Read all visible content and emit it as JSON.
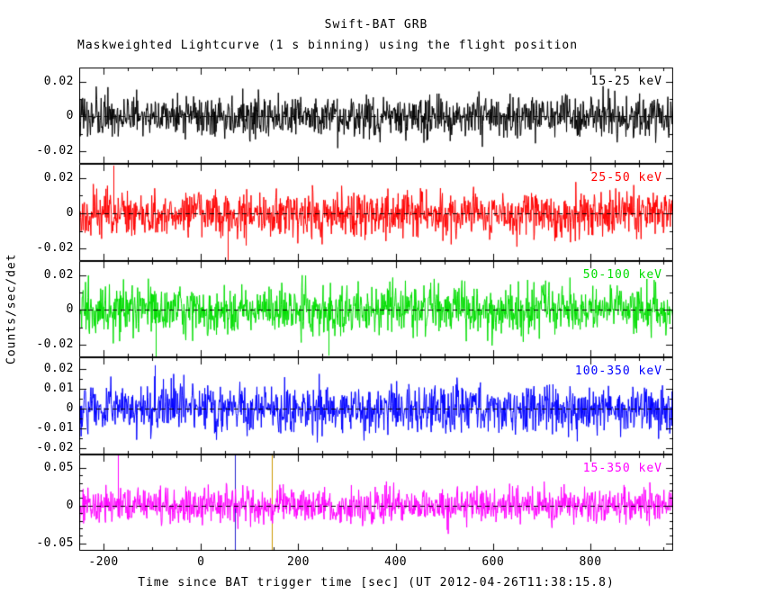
{
  "chart_data": {
    "type": "line",
    "title": "Swift-BAT GRB",
    "subtitle": "Maskweighted Lightcurve (1 s binning) using the flight position",
    "xlabel": "Time since BAT trigger time [sec] (UT 2012-04-26T11:38:15.8)",
    "ylabel": "Counts/sec/det",
    "x_range": [
      -250,
      970
    ],
    "bin_sec": 1,
    "x_major_step": 200,
    "x_minor_step": 50,
    "x_major_ticks": [
      -200,
      0,
      200,
      400,
      600,
      800
    ],
    "x_tick_labels": [
      "-200",
      "0",
      "200",
      "400",
      "600",
      "800"
    ],
    "grid": false,
    "legend": "inline-top-right-per-panel",
    "zero_line": {
      "style": "dashed",
      "color": "#000000"
    },
    "panels": [
      {
        "id": "15-25",
        "label": "15-25 keV",
        "color": "#000000",
        "y_range": [
          -0.027,
          0.028
        ],
        "y_ticks": [
          0.02,
          0,
          -0.02
        ],
        "y_tick_labels": [
          "0.02",
          "0",
          "-0.02"
        ],
        "y_minor_ticks": [
          0.01,
          -0.01
        ],
        "noise_sigma": 0.006,
        "seed": 1,
        "spikes": []
      },
      {
        "id": "25-50",
        "label": "25-50 keV",
        "color": "#ff0000",
        "y_range": [
          -0.027,
          0.028
        ],
        "y_ticks": [
          0.02,
          0,
          -0.02
        ],
        "y_tick_labels": [
          "0.02",
          "0",
          "-0.02"
        ],
        "y_minor_ticks": [
          0.01,
          -0.01
        ],
        "noise_sigma": 0.0065,
        "seed": 2,
        "spikes": [
          {
            "x": -180,
            "y": 0.027
          },
          {
            "x": 55,
            "y": -0.03
          }
        ]
      },
      {
        "id": "50-100",
        "label": "50-100 keV",
        "color": "#00dd00",
        "y_range": [
          -0.027,
          0.028
        ],
        "y_ticks": [
          0.02,
          0,
          -0.02
        ],
        "y_tick_labels": [
          "0.02",
          "0",
          "-0.02"
        ],
        "y_minor_ticks": [
          0.01,
          -0.01
        ],
        "noise_sigma": 0.007,
        "seed": 3,
        "spikes": [
          {
            "x": -93,
            "y": -0.033
          },
          {
            "x": 262,
            "y": -0.026
          }
        ]
      },
      {
        "id": "100-350",
        "label": "100-350 keV",
        "color": "#0000ff",
        "y_range": [
          -0.023,
          0.026
        ],
        "y_ticks": [
          0.02,
          0.01,
          0,
          -0.01,
          -0.02
        ],
        "y_tick_labels": [
          "0.02",
          "0.01",
          "0",
          "-0.01",
          "-0.02"
        ],
        "y_minor_ticks": [
          0.015,
          0.005,
          -0.005,
          -0.015
        ],
        "noise_sigma": 0.006,
        "seed": 4,
        "spikes": [
          {
            "x": -95,
            "y": 0.022
          }
        ]
      },
      {
        "id": "15-350",
        "label": "15-350 keV",
        "color": "#ff00ff",
        "y_range": [
          -0.06,
          0.068
        ],
        "y_ticks": [
          0.05,
          0,
          -0.05
        ],
        "y_tick_labels": [
          "0.05",
          "0",
          "-0.05"
        ],
        "y_minor_ticks": [
          0.04,
          0.03,
          0.02,
          0.01,
          -0.01,
          -0.02,
          -0.03,
          -0.04
        ],
        "noise_sigma": 0.012,
        "seed": 5,
        "spikes": [
          {
            "x": -170,
            "y": 0.068
          }
        ]
      }
    ],
    "annotations": [
      {
        "panel_index": 4,
        "x": 70,
        "color": "#2222cc",
        "name": "vertical-marker-blue"
      },
      {
        "panel_index": 4,
        "x": 145,
        "color": "#cc9900",
        "name": "vertical-marker-orange"
      }
    ]
  }
}
